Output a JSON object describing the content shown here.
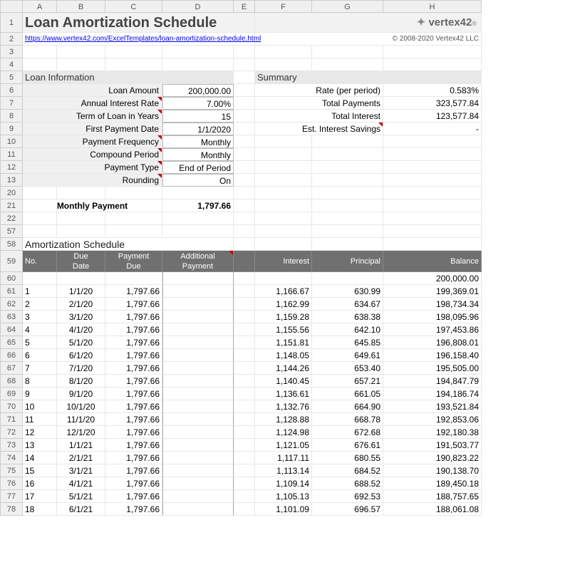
{
  "columns": [
    "A",
    "B",
    "C",
    "D",
    "E",
    "F",
    "G",
    "H"
  ],
  "title": "Loan Amortization Schedule",
  "logo_text": "vertex42",
  "url": "https://www.vertex42.com/ExcelTemplates/loan-amortization-schedule.html",
  "copyright": "© 2008-2020 Vertex42 LLC",
  "loan_info": {
    "header": "Loan Information",
    "rows": [
      {
        "r": "6",
        "label": "Loan Amount",
        "value": "200,000.00",
        "mark": false,
        "input": true
      },
      {
        "r": "7",
        "label": "Annual Interest Rate",
        "value": "7.00%",
        "mark": true,
        "input": true
      },
      {
        "r": "8",
        "label": "Term of Loan in Years",
        "value": "15",
        "mark": true,
        "input": true
      },
      {
        "r": "9",
        "label": "First Payment Date",
        "value": "1/1/2020",
        "mark": false,
        "input": true
      },
      {
        "r": "10",
        "label": "Payment Frequency",
        "value": "Monthly",
        "mark": true,
        "input": true
      },
      {
        "r": "11",
        "label": "Compound Period",
        "value": "Monthly",
        "mark": true,
        "input": true
      },
      {
        "r": "12",
        "label": "Payment Type",
        "value": "End of Period",
        "mark": true,
        "input": true
      },
      {
        "r": "13",
        "label": "Rounding",
        "value": "On",
        "mark": true,
        "input": true
      }
    ],
    "payment_row": "21",
    "payment_label": "Monthly Payment",
    "payment_value": "1,797.66"
  },
  "summary": {
    "header": "Summary",
    "rows": [
      {
        "r": "6",
        "label": "Rate (per period)",
        "value": "0.583%",
        "mark": false
      },
      {
        "r": "7",
        "label": "Total Payments",
        "value": "323,577.84",
        "mark": false
      },
      {
        "r": "8",
        "label": "Total Interest",
        "value": "123,577.84",
        "mark": false
      },
      {
        "r": "9",
        "label": "Est. Interest Savings",
        "value": "-",
        "mark": true
      }
    ]
  },
  "blank_rows_top": [
    "3",
    "4"
  ],
  "section_row": "5",
  "between_rows": [
    "20"
  ],
  "after_payment_rows": [
    "22",
    "57"
  ],
  "sched_title_row": "58",
  "sched_title": "Amortization Schedule",
  "sched_header_row": "59",
  "sched_headers": {
    "no": "No.",
    "due": "Due\nDate",
    "pay": "Payment\nDue",
    "addl": "Additional\nPayment",
    "interest": "Interest",
    "principal": "Principal",
    "balance": "Balance"
  },
  "opening_row": {
    "r": "60",
    "balance": "200,000.00"
  },
  "schedule": [
    {
      "r": "61",
      "no": "1",
      "date": "1/1/20",
      "pay": "1,797.66",
      "int": "1,166.67",
      "prin": "630.99",
      "bal": "199,369.01"
    },
    {
      "r": "62",
      "no": "2",
      "date": "2/1/20",
      "pay": "1,797.66",
      "int": "1,162.99",
      "prin": "634.67",
      "bal": "198,734.34"
    },
    {
      "r": "63",
      "no": "3",
      "date": "3/1/20",
      "pay": "1,797.66",
      "int": "1,159.28",
      "prin": "638.38",
      "bal": "198,095.96"
    },
    {
      "r": "64",
      "no": "4",
      "date": "4/1/20",
      "pay": "1,797.66",
      "int": "1,155.56",
      "prin": "642.10",
      "bal": "197,453.86"
    },
    {
      "r": "65",
      "no": "5",
      "date": "5/1/20",
      "pay": "1,797.66",
      "int": "1,151.81",
      "prin": "645.85",
      "bal": "196,808.01"
    },
    {
      "r": "66",
      "no": "6",
      "date": "6/1/20",
      "pay": "1,797.66",
      "int": "1,148.05",
      "prin": "649.61",
      "bal": "196,158.40"
    },
    {
      "r": "67",
      "no": "7",
      "date": "7/1/20",
      "pay": "1,797.66",
      "int": "1,144.26",
      "prin": "653.40",
      "bal": "195,505.00"
    },
    {
      "r": "68",
      "no": "8",
      "date": "8/1/20",
      "pay": "1,797.66",
      "int": "1,140.45",
      "prin": "657.21",
      "bal": "194,847.79"
    },
    {
      "r": "69",
      "no": "9",
      "date": "9/1/20",
      "pay": "1,797.66",
      "int": "1,136.61",
      "prin": "661.05",
      "bal": "194,186.74"
    },
    {
      "r": "70",
      "no": "10",
      "date": "10/1/20",
      "pay": "1,797.66",
      "int": "1,132.76",
      "prin": "664.90",
      "bal": "193,521.84"
    },
    {
      "r": "71",
      "no": "11",
      "date": "11/1/20",
      "pay": "1,797.66",
      "int": "1,128.88",
      "prin": "668.78",
      "bal": "192,853.06"
    },
    {
      "r": "72",
      "no": "12",
      "date": "12/1/20",
      "pay": "1,797.66",
      "int": "1,124.98",
      "prin": "672.68",
      "bal": "192,180.38"
    },
    {
      "r": "73",
      "no": "13",
      "date": "1/1/21",
      "pay": "1,797.66",
      "int": "1,121.05",
      "prin": "676.61",
      "bal": "191,503.77"
    },
    {
      "r": "74",
      "no": "14",
      "date": "2/1/21",
      "pay": "1,797.66",
      "int": "1,117.11",
      "prin": "680.55",
      "bal": "190,823.22"
    },
    {
      "r": "75",
      "no": "15",
      "date": "3/1/21",
      "pay": "1,797.66",
      "int": "1,113.14",
      "prin": "684.52",
      "bal": "190,138.70"
    },
    {
      "r": "76",
      "no": "16",
      "date": "4/1/21",
      "pay": "1,797.66",
      "int": "1,109.14",
      "prin": "688.52",
      "bal": "189,450.18"
    },
    {
      "r": "77",
      "no": "17",
      "date": "5/1/21",
      "pay": "1,797.66",
      "int": "1,105.13",
      "prin": "692.53",
      "bal": "188,757.65"
    },
    {
      "r": "78",
      "no": "18",
      "date": "6/1/21",
      "pay": "1,797.66",
      "int": "1,101.09",
      "prin": "696.57",
      "bal": "188,061.08"
    }
  ],
  "colors": {
    "hdr_bg": "#f0f0f0",
    "section_bg": "#e8e8e8",
    "table_hdr_bg": "#707070"
  }
}
